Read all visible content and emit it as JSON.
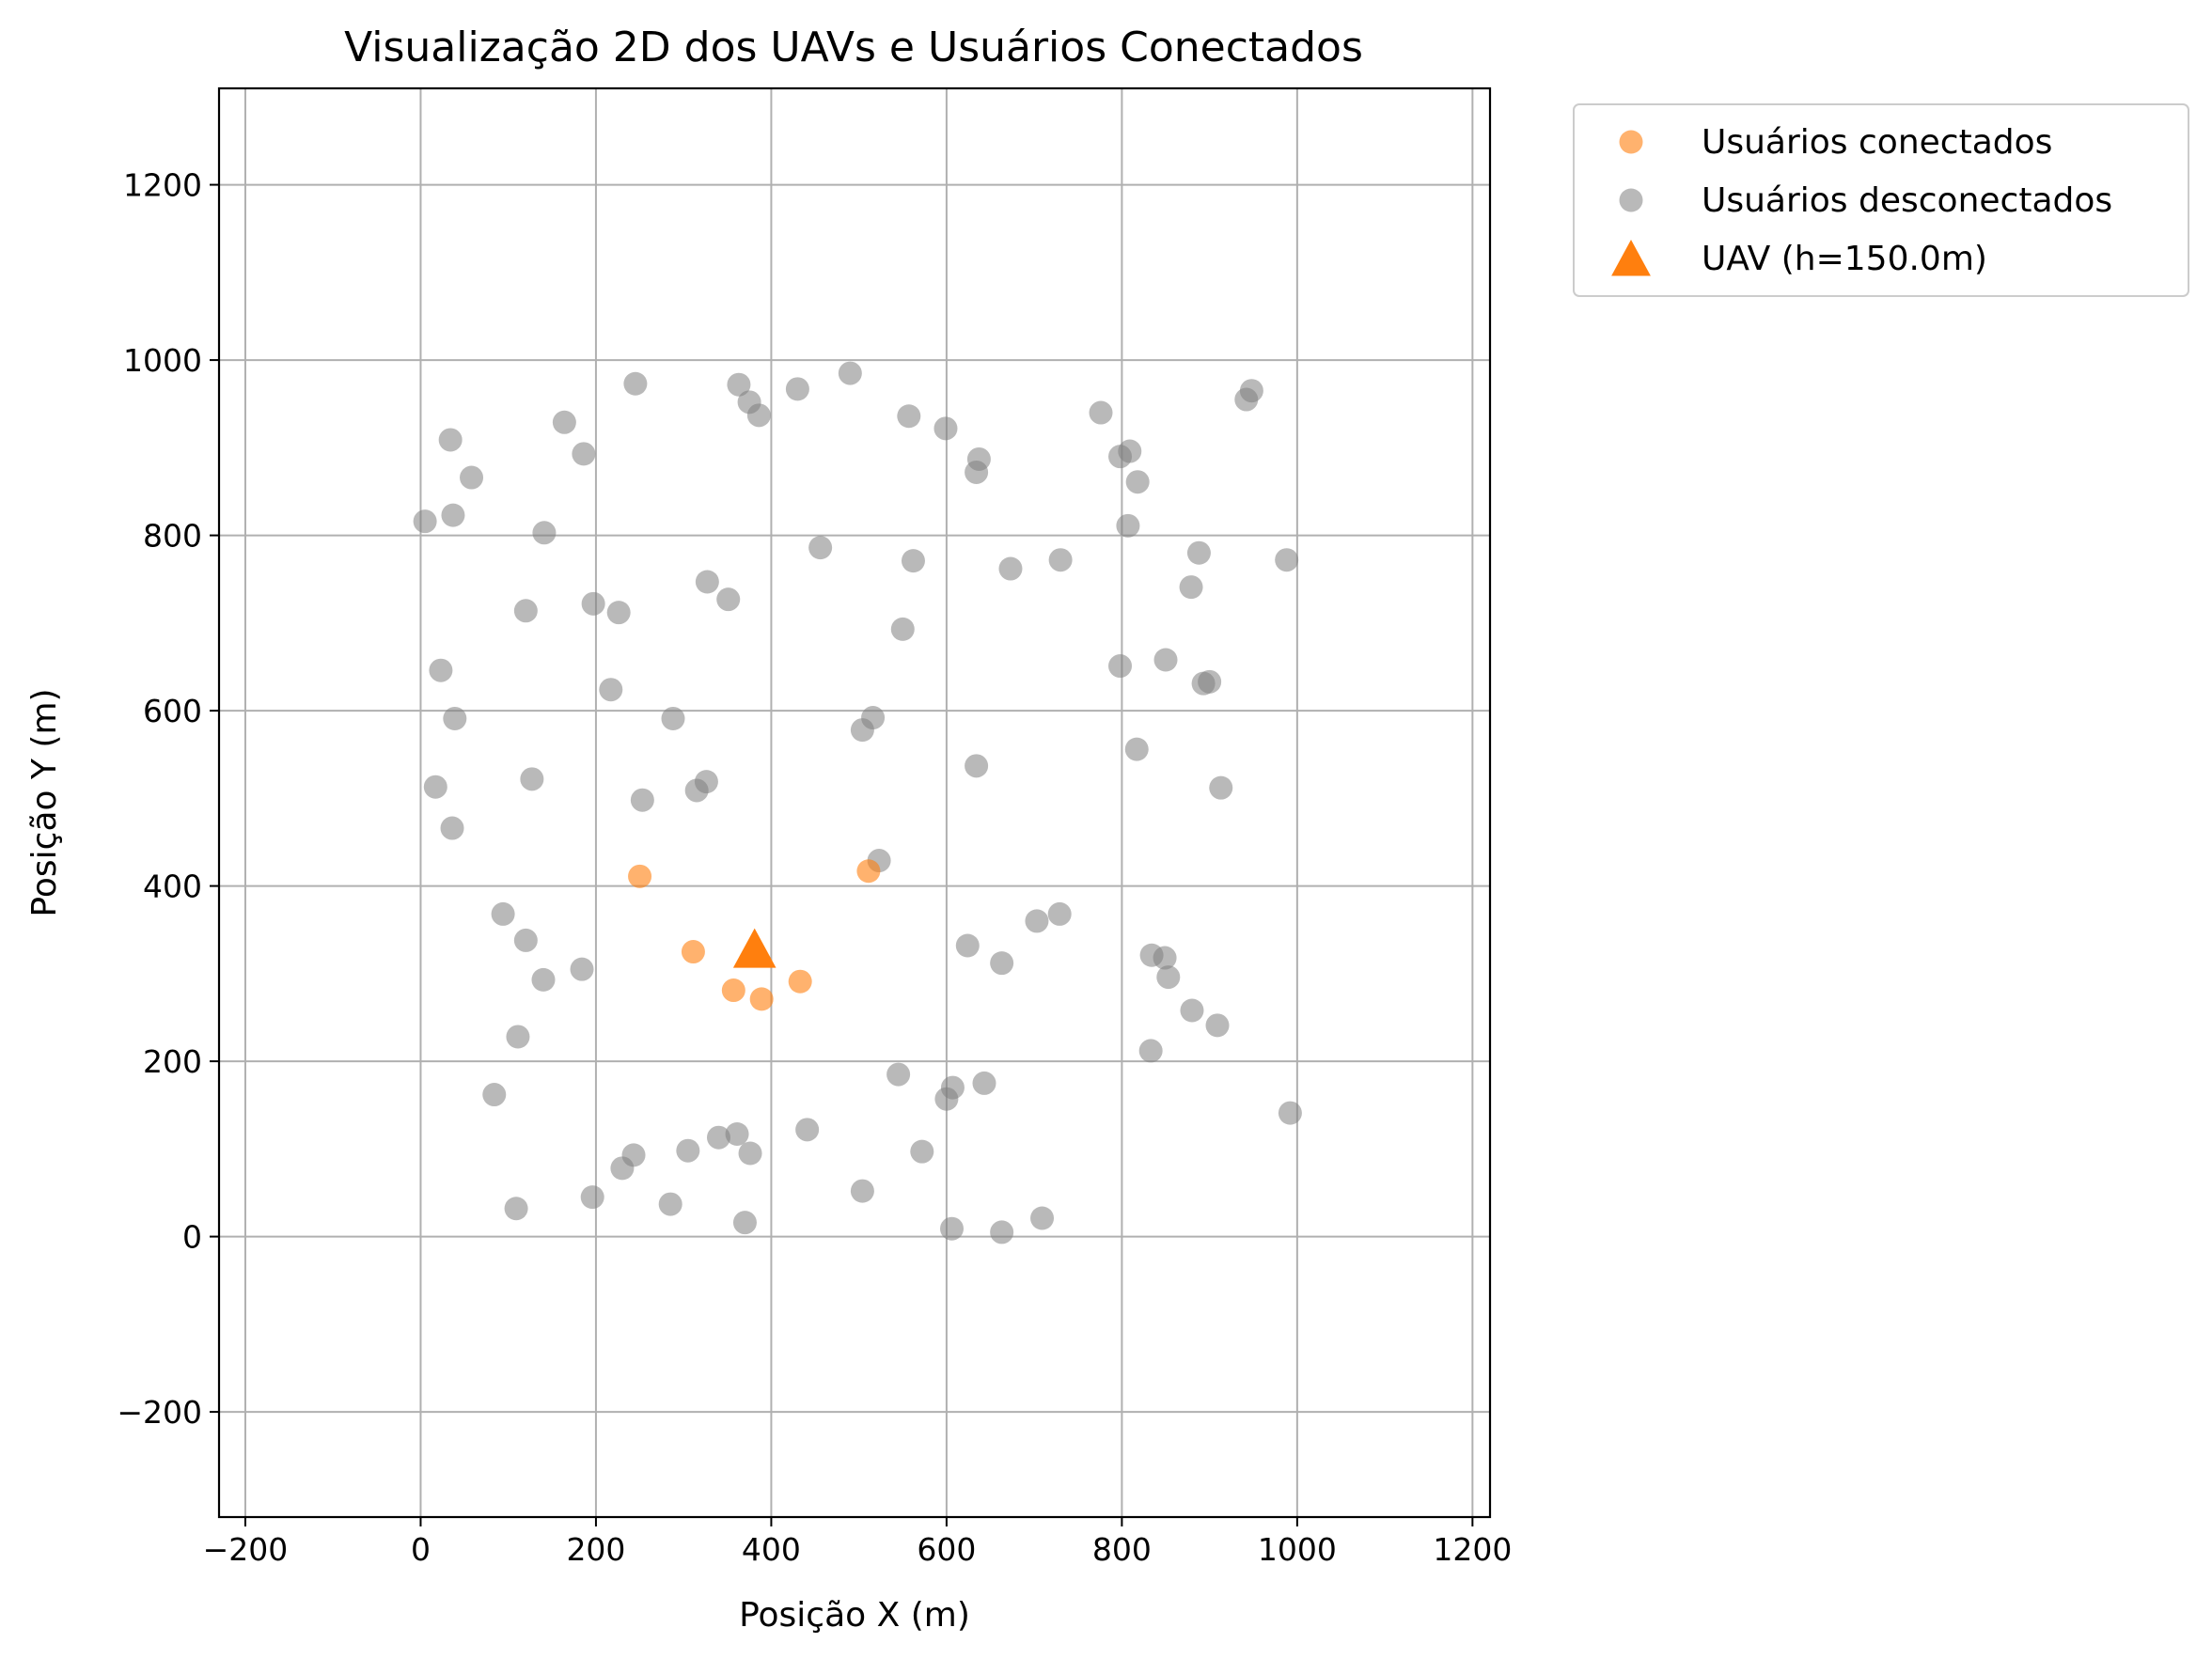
{
  "chart_data": {
    "type": "scatter",
    "title": "Visualização 2D dos UAVs e Usuários Conectados",
    "xlabel": "Posição X (m)",
    "ylabel": "Posição Y (m)",
    "xlim": [
      -230,
      1220
    ],
    "ylim": [
      -320,
      1310
    ],
    "xticks": [
      -200,
      0,
      200,
      400,
      600,
      800,
      1000,
      1200
    ],
    "yticks": [
      -200,
      0,
      200,
      400,
      600,
      800,
      1000,
      1200
    ],
    "xtick_labels": [
      "−200",
      "0",
      "200",
      "400",
      "600",
      "800",
      "1000",
      "1200"
    ],
    "ytick_labels": [
      "−200",
      "0",
      "200",
      "400",
      "600",
      "800",
      "1000",
      "1200"
    ],
    "grid": true,
    "legend_position": "outside upper right",
    "series": [
      {
        "name": "Usuários conectados",
        "marker": "circle",
        "color": "#ff7f0e",
        "alpha": 0.6,
        "points": [
          [
            250,
            411
          ],
          [
            311,
            325
          ],
          [
            357,
            281
          ],
          [
            389,
            271
          ],
          [
            433,
            291
          ],
          [
            511,
            417
          ]
        ]
      },
      {
        "name": "Usuários desconectados",
        "marker": "circle",
        "color": "#808080",
        "alpha": 0.55,
        "points": [
          [
            245,
            973
          ],
          [
            363,
            972
          ],
          [
            375,
            952
          ],
          [
            386,
            937
          ],
          [
            430,
            967
          ],
          [
            490,
            985
          ],
          [
            557,
            936
          ],
          [
            599,
            922
          ],
          [
            637,
            887
          ],
          [
            634,
            872
          ],
          [
            776,
            940
          ],
          [
            798,
            890
          ],
          [
            809,
            896
          ],
          [
            818,
            861
          ],
          [
            942,
            955
          ],
          [
            948,
            965
          ],
          [
            34,
            909
          ],
          [
            58,
            866
          ],
          [
            164,
            929
          ],
          [
            186,
            893
          ],
          [
            5,
            816
          ],
          [
            37,
            823
          ],
          [
            141,
            803
          ],
          [
            456,
            786
          ],
          [
            562,
            771
          ],
          [
            673,
            762
          ],
          [
            730,
            772
          ],
          [
            807,
            811
          ],
          [
            888,
            780
          ],
          [
            879,
            741
          ],
          [
            988,
            772
          ],
          [
            120,
            714
          ],
          [
            197,
            722
          ],
          [
            226,
            712
          ],
          [
            327,
            747
          ],
          [
            351,
            727
          ],
          [
            550,
            693
          ],
          [
            798,
            651
          ],
          [
            850,
            658
          ],
          [
            893,
            631
          ],
          [
            900,
            633
          ],
          [
            23,
            646
          ],
          [
            39,
            591
          ],
          [
            217,
            624
          ],
          [
            288,
            591
          ],
          [
            504,
            578
          ],
          [
            516,
            592
          ],
          [
            17,
            513
          ],
          [
            36,
            466
          ],
          [
            127,
            522
          ],
          [
            253,
            498
          ],
          [
            315,
            509
          ],
          [
            326,
            519
          ],
          [
            634,
            537
          ],
          [
            817,
            556
          ],
          [
            913,
            512
          ],
          [
            523,
            429
          ],
          [
            94,
            368
          ],
          [
            120,
            338
          ],
          [
            140,
            293
          ],
          [
            184,
            305
          ],
          [
            624,
            332
          ],
          [
            663,
            312
          ],
          [
            703,
            360
          ],
          [
            729,
            368
          ],
          [
            834,
            321
          ],
          [
            849,
            318
          ],
          [
            853,
            296
          ],
          [
            111,
            228
          ],
          [
            84,
            162
          ],
          [
            545,
            185
          ],
          [
            600,
            157
          ],
          [
            607,
            170
          ],
          [
            643,
            175
          ],
          [
            880,
            258
          ],
          [
            909,
            241
          ],
          [
            833,
            212
          ],
          [
            992,
            141
          ],
          [
            230,
            78
          ],
          [
            243,
            93
          ],
          [
            305,
            98
          ],
          [
            340,
            113
          ],
          [
            361,
            117
          ],
          [
            376,
            95
          ],
          [
            441,
            122
          ],
          [
            572,
            97
          ],
          [
            109,
            32
          ],
          [
            196,
            45
          ],
          [
            285,
            37
          ],
          [
            370,
            16
          ],
          [
            504,
            52
          ],
          [
            606,
            9
          ],
          [
            663,
            5
          ],
          [
            709,
            21
          ]
        ]
      },
      {
        "name": "UAV (h=150.0m)",
        "marker": "triangle",
        "color": "#ff7f0e",
        "alpha": 1.0,
        "points": [
          [
            381,
            326
          ]
        ]
      }
    ]
  }
}
